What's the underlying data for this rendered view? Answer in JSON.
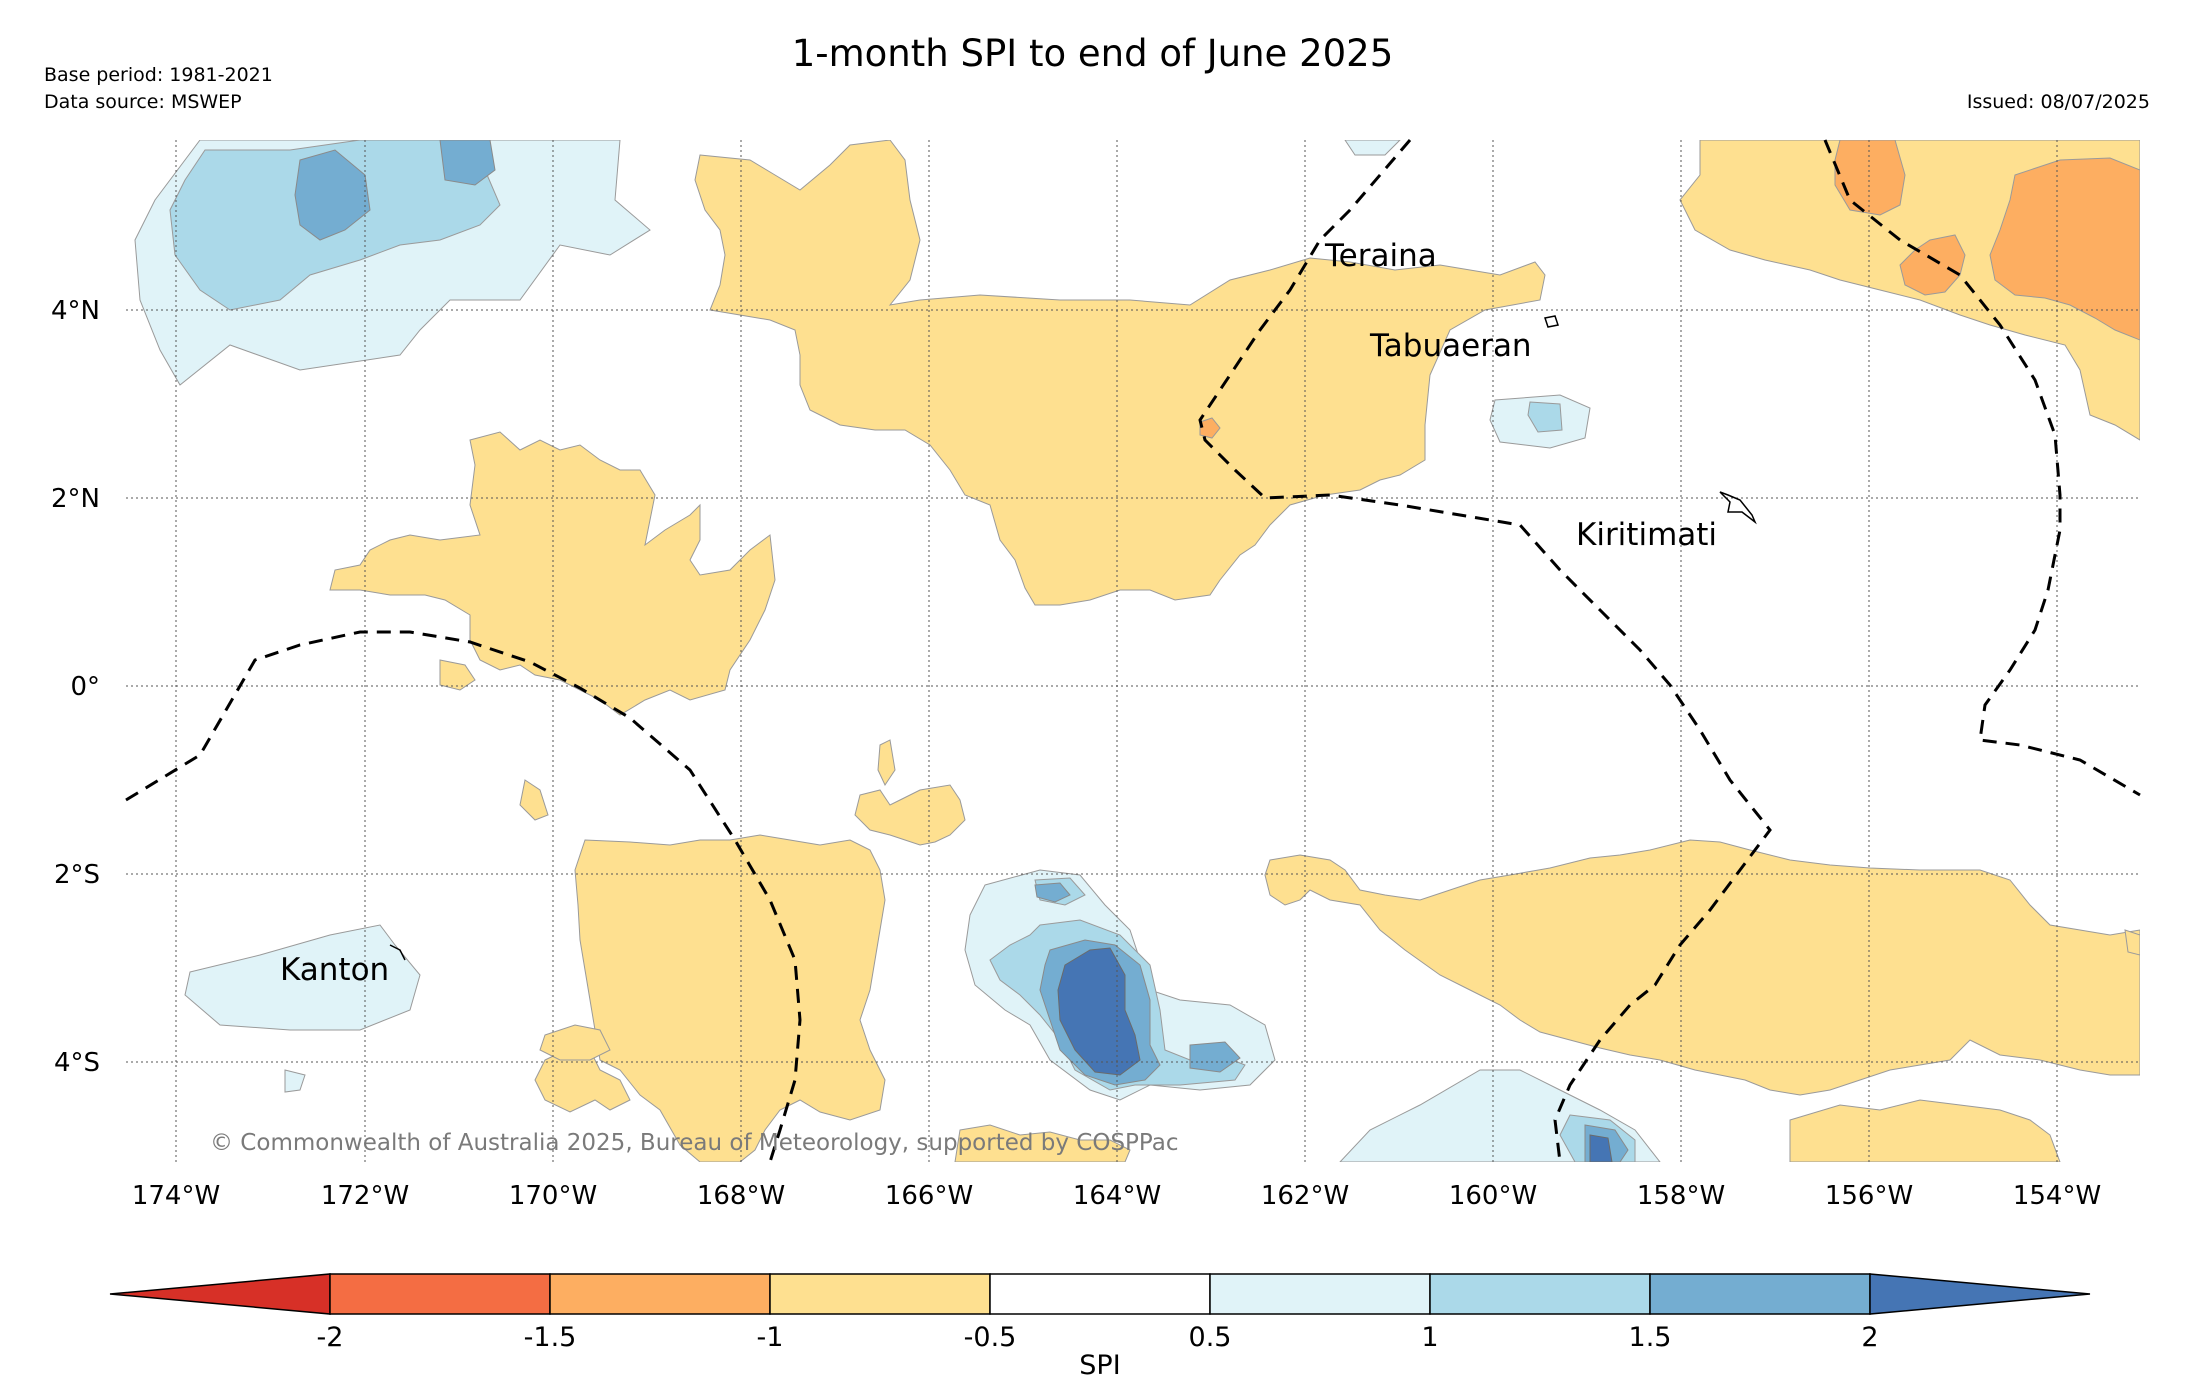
{
  "title": "1-month SPI to end of June 2025",
  "meta": {
    "base_period": "Base period: 1981-2021",
    "data_source": "Data source: MSWEP",
    "issued": "Issued: 08/07/2025"
  },
  "map": {
    "longitude_labels": [
      "174°W",
      "172°W",
      "170°W",
      "168°W",
      "166°W",
      "164°W",
      "162°W",
      "160°W",
      "158°W",
      "156°W",
      "154°W"
    ],
    "latitude_labels": [
      "4°N",
      "2°N",
      "0°",
      "2°S",
      "4°S"
    ],
    "places": [
      "Teraina",
      "Tabuaeran",
      "Kiritimati",
      "Kanton"
    ],
    "copyright": "© Commonwealth of Australia 2025, Bureau of Meteorology, supported by COSPPac"
  },
  "colorbar": {
    "label": "SPI",
    "ticks": [
      "-2",
      "-1.5",
      "-1",
      "-0.5",
      "0.5",
      "1",
      "1.5",
      "2"
    ],
    "colors": {
      "lt_-2": "#d73027",
      "-2_-1.5": "#f46d43",
      "-1.5_-1": "#fdae61",
      "-1_-0.5": "#fee090",
      "-0.5_0.5": "#ffffff",
      "0.5_1": "#e0f3f8",
      "1_1.5": "#abd9e9",
      "1.5_2": "#74add1",
      "gt_2": "#4575b4"
    }
  }
}
